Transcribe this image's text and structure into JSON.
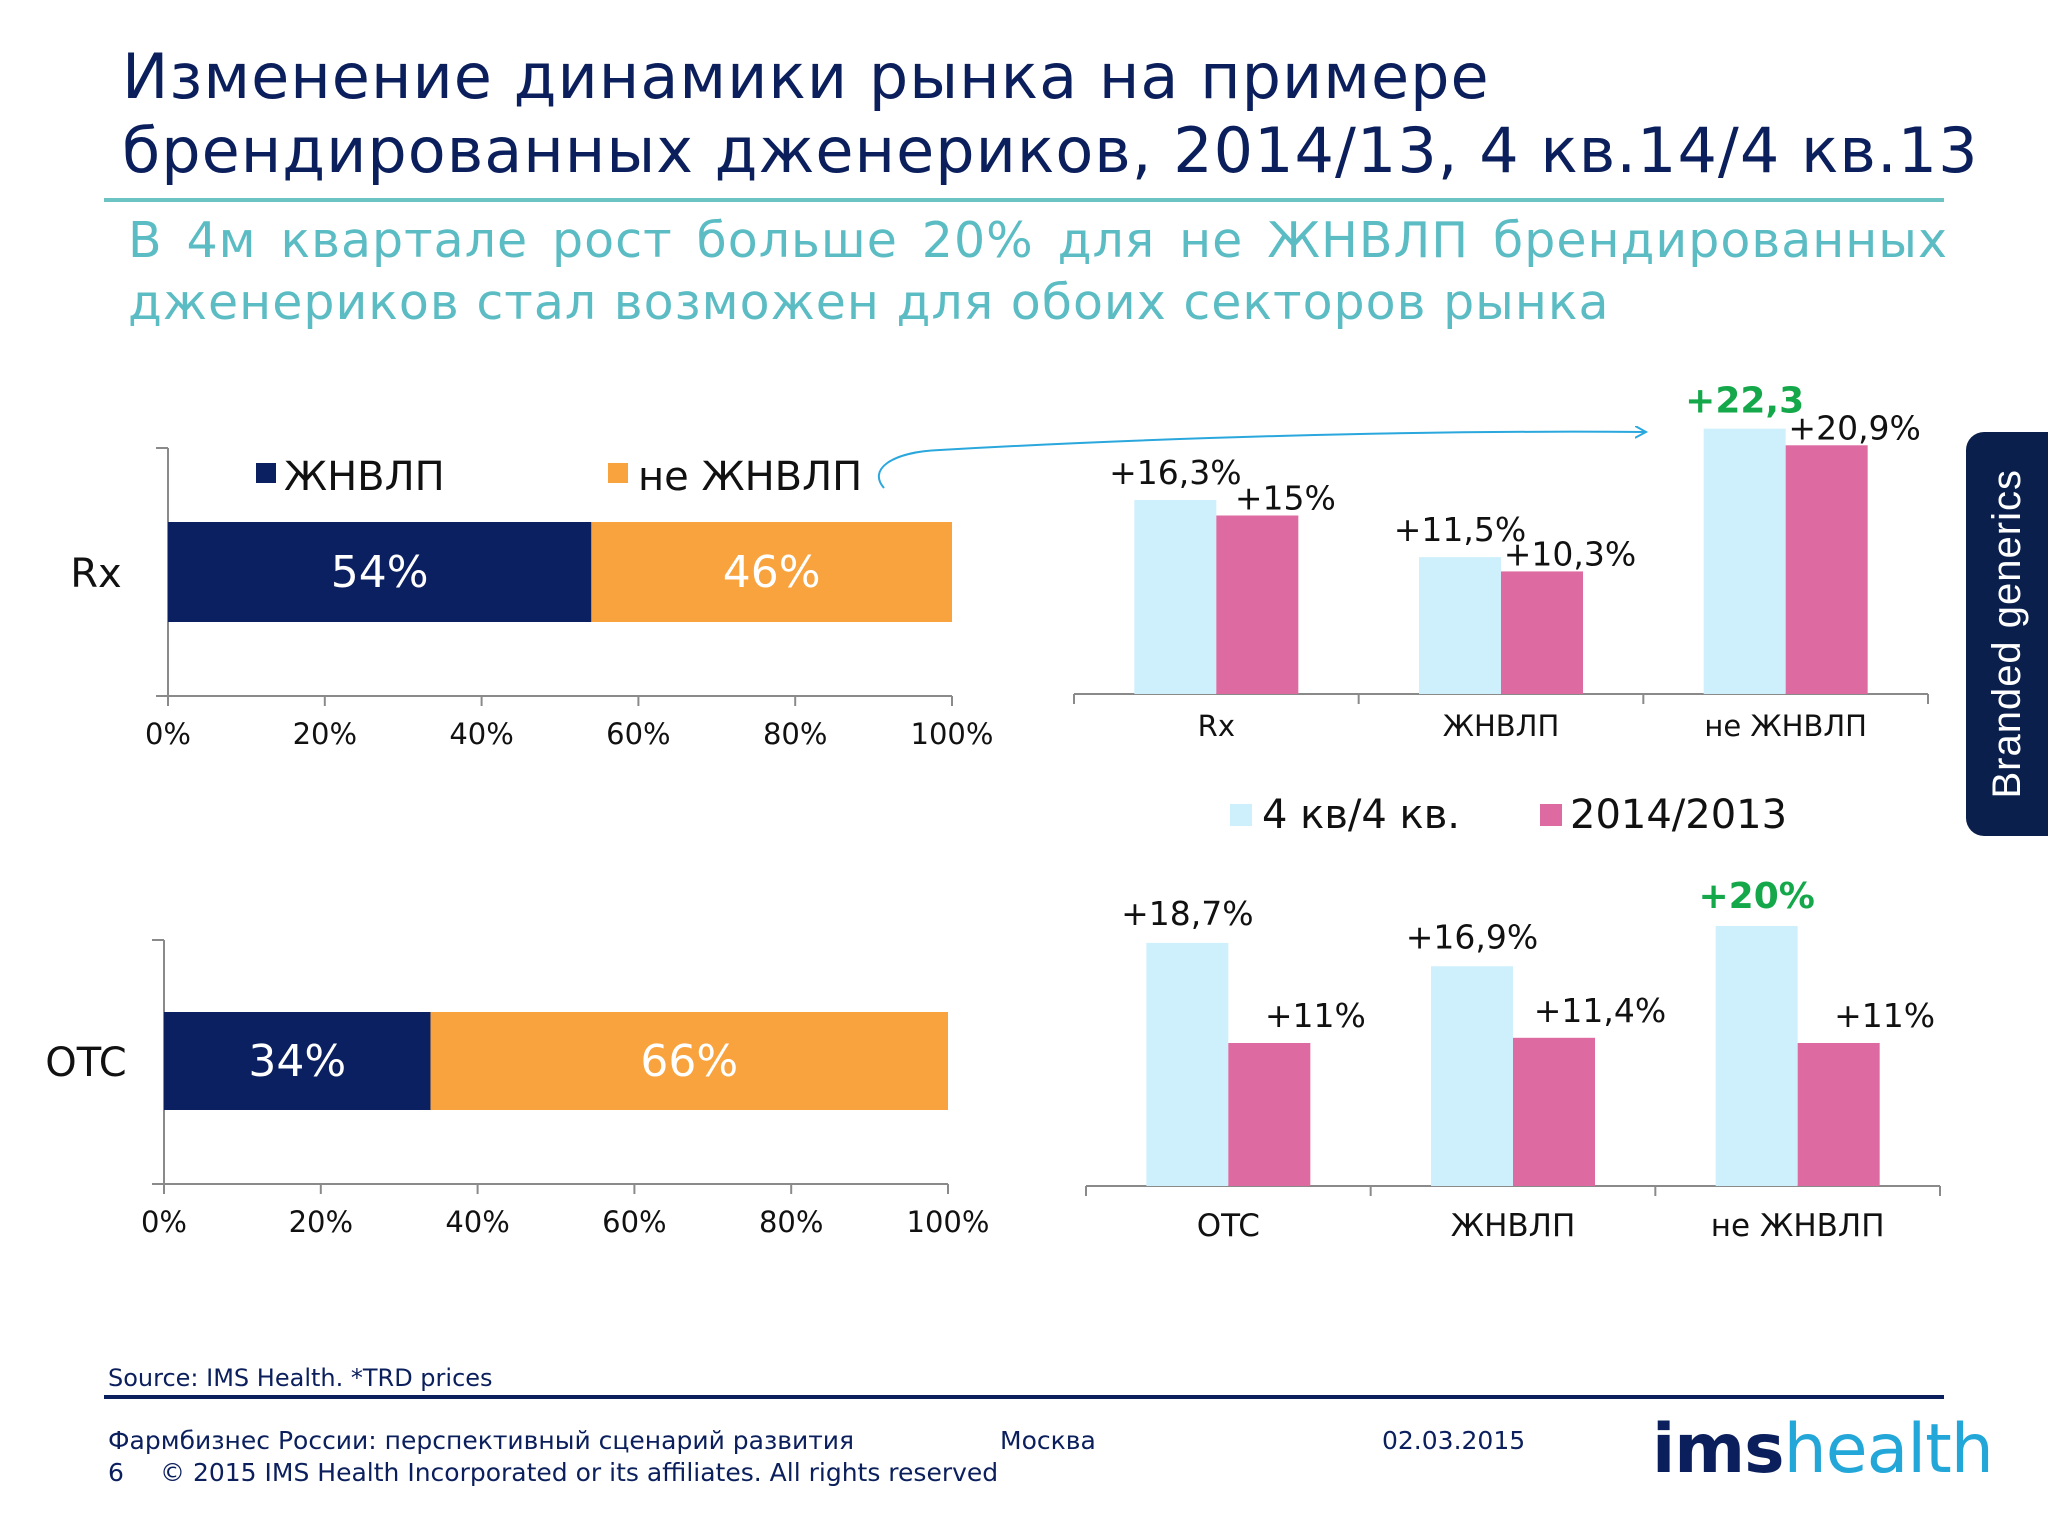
{
  "title": "Изменение динамики рынка на примере брендированных дженериков, 2014/13, 4 кв.14/4 кв.13",
  "subtitle": "В 4м квартале рост больше 20% для не ЖНВЛП брендированных дженериков стал возможен для обоих секторов рынка",
  "side_tab": "Branded generics",
  "colors": {
    "zhnvlp": "#0b2060",
    "non_zhnvlp": "#f8a33d",
    "q4": "#cdf0fc",
    "year": "#dd6aa0",
    "highlight": "#14a84a",
    "arrow": "#2aa7dc"
  },
  "chart_data": [
    {
      "type": "bar",
      "orientation": "horizontal",
      "stacked": true,
      "categories": [
        "Rx"
      ],
      "series": [
        {
          "name": "ЖНВЛП",
          "values": [
            54
          ],
          "labels": [
            "54%"
          ]
        },
        {
          "name": "не ЖНВЛП",
          "values": [
            46
          ],
          "labels": [
            "46%"
          ]
        }
      ],
      "xlim": [
        0,
        100
      ],
      "xticks": [
        "0%",
        "20%",
        "40%",
        "60%",
        "80%",
        "100%"
      ],
      "legend": [
        "ЖНВЛП",
        "не ЖНВЛП"
      ],
      "legend_position": "top"
    },
    {
      "type": "bar",
      "orientation": "horizontal",
      "stacked": true,
      "categories": [
        "OTC"
      ],
      "series": [
        {
          "name": "ЖНВЛП",
          "values": [
            34
          ],
          "labels": [
            "34%"
          ]
        },
        {
          "name": "не ЖНВЛП",
          "values": [
            66
          ],
          "labels": [
            "66%"
          ]
        }
      ],
      "xlim": [
        0,
        100
      ],
      "xticks": [
        "0%",
        "20%",
        "40%",
        "60%",
        "80%",
        "100%"
      ]
    },
    {
      "type": "bar",
      "categories": [
        "Rx",
        "ЖНВЛП",
        "не ЖНВЛП"
      ],
      "series": [
        {
          "name": "4 кв/4 кв.",
          "values": [
            16.3,
            11.5,
            22.3
          ],
          "labels": [
            "+16,3%",
            "+11,5%",
            "+22,3"
          ]
        },
        {
          "name": "2014/2013",
          "values": [
            15,
            10.3,
            20.9
          ],
          "labels": [
            "+15%",
            "+10,3%",
            "+20,9%"
          ]
        }
      ],
      "highlight": {
        "series": 0,
        "index": 2
      },
      "ylim": [
        0,
        23
      ],
      "legend": [
        "4 кв/4 кв.",
        "2014/2013"
      ],
      "legend_position": "bottom"
    },
    {
      "type": "bar",
      "categories": [
        "OTC",
        "ЖНВЛП",
        "не ЖНВЛП"
      ],
      "series": [
        {
          "name": "4 кв/4 кв.",
          "values": [
            18.7,
            16.9,
            20
          ],
          "labels": [
            "+18,7%",
            "+16,9%",
            "+20%"
          ]
        },
        {
          "name": "2014/2013",
          "values": [
            11,
            11.4,
            11
          ],
          "labels": [
            "+11%",
            "+11,4%",
            "+11%"
          ]
        }
      ],
      "highlight": {
        "series": 0,
        "index": 2
      },
      "ylim": [
        0,
        23
      ]
    }
  ],
  "footer": {
    "source": "Source: IMS Health.  *TRD prices",
    "conference": "Фармбизнес России: перспективный сценарий развития",
    "city": "Москва",
    "date": "02.03.2015",
    "page": "6",
    "copyright": "© 2015 IMS Health Incorporated or its affiliates. All rights reserved",
    "logo_ims": "ims",
    "logo_health": "health"
  }
}
